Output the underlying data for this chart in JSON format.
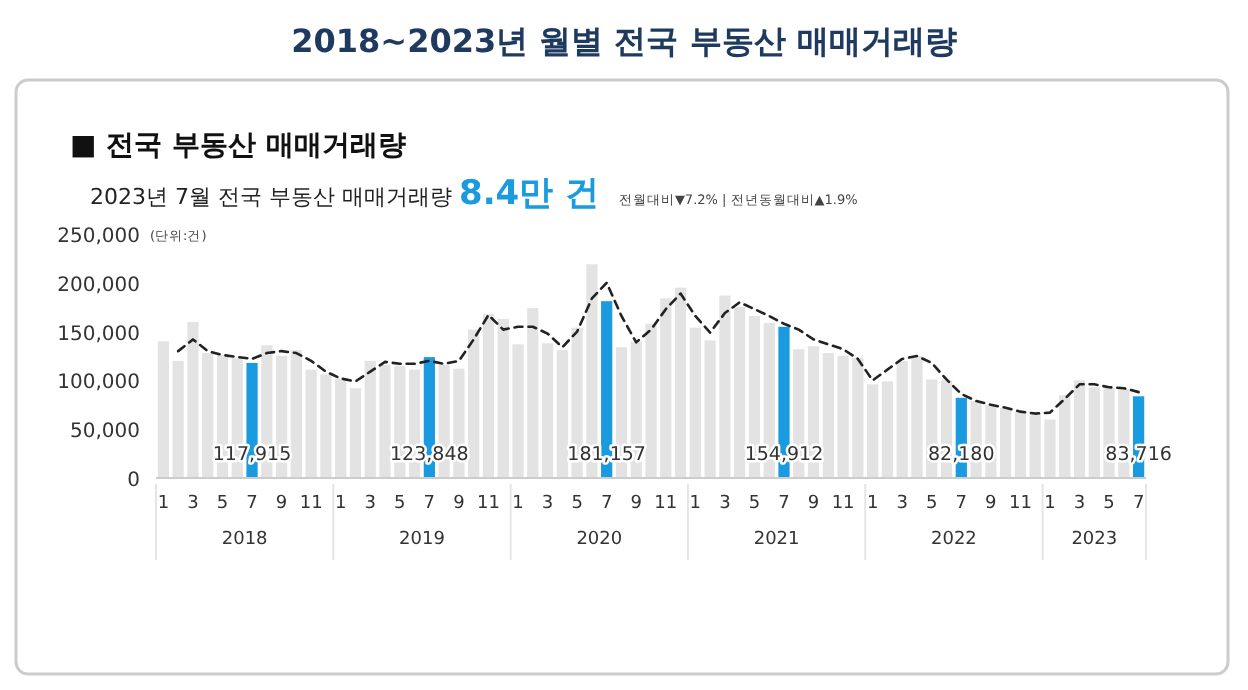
{
  "chart_data": {
    "type": "bar",
    "title": "2018~2023년 월별 전국 부동산 매매거래량",
    "subtitle": "■ 전국 부동산 매매거래량",
    "categories": [
      "1",
      null,
      "3",
      null,
      "5",
      null,
      "7",
      null,
      "9",
      null,
      "11",
      null,
      "1",
      null,
      "3",
      null,
      "5",
      null,
      "7",
      null,
      "9",
      null,
      "11",
      null,
      "1",
      null,
      "3",
      null,
      "5",
      null,
      "7",
      null,
      "9",
      null,
      "11",
      null,
      "1",
      null,
      "3",
      null,
      "5",
      null,
      "7",
      null,
      "9",
      null,
      "11",
      null,
      "1",
      null,
      "3",
      null,
      "5",
      null,
      "7",
      null,
      "9",
      null,
      "11",
      null,
      "1",
      null,
      "3",
      null,
      "5",
      null,
      "7"
    ],
    "annotations": [
      "2023년 7월 전국 부동산 매매거래량",
      "8.4만 건",
      "전월대비▼7.2% | 전년동월대비▲1.9%",
      "(단위:건)",
      "2018",
      "2019",
      "2020",
      "2021",
      "2022",
      "2023"
    ],
    "series": [
      {
        "values": [
          140000,
          120000,
          160000,
          128000,
          126000,
          123000,
          117915,
          136000,
          125000,
          131000,
          111000,
          106000,
          102000,
          92000,
          120000,
          116000,
          115000,
          111000,
          123848,
          116000,
          112000,
          152000,
          168000,
          163000,
          137000,
          174000,
          138000,
          131000,
          154000,
          219000,
          181157,
          134000,
          140000,
          158000,
          184000,
          195000,
          154000,
          141000,
          187000,
          175000,
          166000,
          159000,
          154912,
          132000,
          135000,
          128000,
          125000,
          123000,
          96000,
          99000,
          120000,
          125000,
          101000,
          100000,
          82180,
          79000,
          75000,
          72000,
          68000,
          67000,
          60000,
          85000,
          100000,
          93000,
          92000,
          91000,
          83716
        ],
        "colors": [
          "#e3e3e3",
          "#e3e3e3",
          "#e3e3e3",
          "#e3e3e3",
          "#e3e3e3",
          "#e3e3e3",
          "#1a9be0",
          "#e3e3e3",
          "#e3e3e3",
          "#e3e3e3",
          "#e3e3e3",
          "#e3e3e3",
          "#e3e3e3",
          "#e3e3e3",
          "#e3e3e3",
          "#e3e3e3",
          "#e3e3e3",
          "#e3e3e3",
          "#1a9be0",
          "#e3e3e3",
          "#e3e3e3",
          "#e3e3e3",
          "#e3e3e3",
          "#e3e3e3",
          "#e3e3e3",
          "#e3e3e3",
          "#e3e3e3",
          "#e3e3e3",
          "#e3e3e3",
          "#e3e3e3",
          "#1a9be0",
          "#e3e3e3",
          "#e3e3e3",
          "#e3e3e3",
          "#e3e3e3",
          "#e3e3e3",
          "#e3e3e3",
          "#e3e3e3",
          "#e3e3e3",
          "#e3e3e3",
          "#e3e3e3",
          "#e3e3e3",
          "#1a9be0",
          "#e3e3e3",
          "#e3e3e3",
          "#e3e3e3",
          "#e3e3e3",
          "#e3e3e3",
          "#e3e3e3",
          "#e3e3e3",
          "#e3e3e3",
          "#e3e3e3",
          "#e3e3e3",
          "#e3e3e3",
          "#1a9be0",
          "#e3e3e3",
          "#e3e3e3",
          "#e3e3e3",
          "#e3e3e3",
          "#e3e3e3",
          "#e3e3e3",
          "#e3e3e3",
          "#e3e3e3",
          "#e3e3e3",
          "#e3e3e3",
          "#e3e3e3",
          "#1a9be0"
        ],
        "value_labels": [
          null,
          null,
          null,
          null,
          null,
          null,
          "117,915",
          null,
          null,
          null,
          null,
          null,
          null,
          null,
          null,
          null,
          null,
          null,
          "123,848",
          null,
          null,
          null,
          null,
          null,
          null,
          null,
          null,
          null,
          null,
          null,
          "181,157",
          null,
          null,
          null,
          null,
          null,
          null,
          null,
          null,
          null,
          null,
          null,
          "154,912",
          null,
          null,
          null,
          null,
          null,
          null,
          null,
          null,
          null,
          null,
          null,
          "82,180",
          null,
          null,
          null,
          null,
          null,
          null,
          null,
          null,
          null,
          null,
          null,
          "83,716"
        ]
      },
      {
        "type": "line",
        "color": "#222222",
        "line_style": "dashed",
        "values": [
          null,
          130000,
          142000,
          130000,
          126000,
          124000,
          122000,
          128000,
          130000,
          128000,
          120000,
          109000,
          102000,
          99000,
          109000,
          119000,
          117000,
          117000,
          120000,
          117000,
          120000,
          142000,
          167000,
          152000,
          155000,
          155000,
          148000,
          134000,
          150000,
          184000,
          200000,
          166000,
          139000,
          152000,
          173000,
          189000,
          166000,
          149000,
          169000,
          180000,
          173000,
          166000,
          158000,
          152000,
          142000,
          137000,
          132000,
          122000,
          100000,
          111000,
          122000,
          125000,
          118000,
          101000,
          86000,
          79000,
          75000,
          72000,
          68000,
          66000,
          67000,
          81000,
          96000,
          96000,
          93000,
          92000,
          88000
        ]
      }
    ],
    "ylim": [
      0,
      250000
    ],
    "yticks": [
      0,
      {
        "value": 50000,
        "label": "50,000"
      },
      {
        "value": 100000,
        "label": "100,000"
      },
      {
        "value": 150000,
        "label": "150,000"
      },
      {
        "value": 200000,
        "label": "200,000"
      },
      {
        "value": 250000,
        "label": "250,000"
      }
    ],
    "grid": false
  }
}
